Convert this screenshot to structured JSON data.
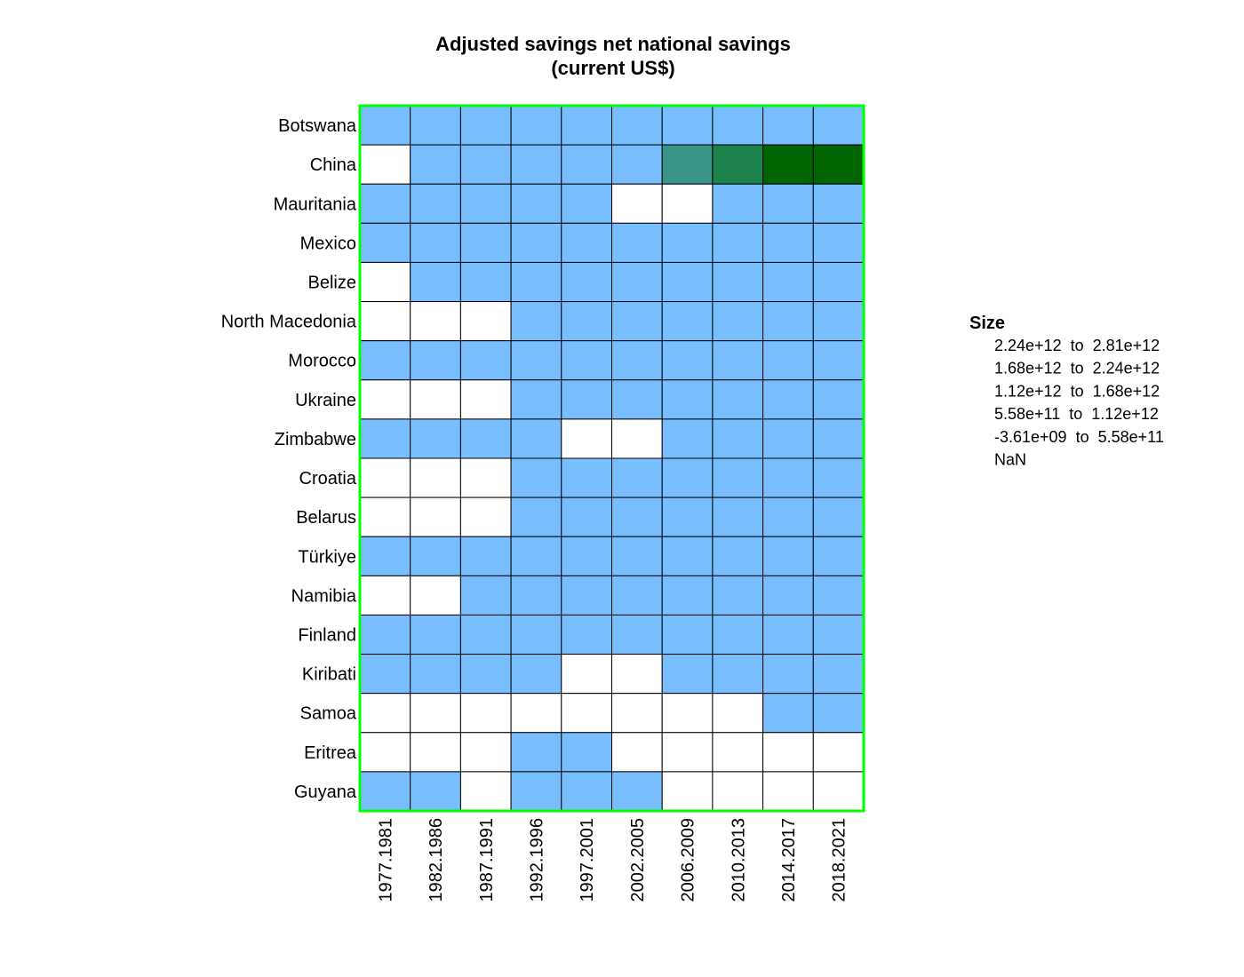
{
  "chart_data": {
    "type": "heatmap",
    "title_lines": [
      "Adjusted savings net national savings",
      "(current US$)"
    ],
    "columns": [
      "1977.1981",
      "1982.1986",
      "1987.1991",
      "1992.1996",
      "1997.2001",
      "2002.2005",
      "2006.2009",
      "2010.2013",
      "2014.2017",
      "2018.2021"
    ],
    "rows": [
      "Botswana",
      "China",
      "Mauritania",
      "Mexico",
      "Belize",
      "North Macedonia",
      "Morocco",
      "Ukraine",
      "Zimbabwe",
      "Croatia",
      "Belarus",
      "Türkiye",
      "Namibia",
      "Finland",
      "Kiribati",
      "Samoa",
      "Eritrea",
      "Guyana"
    ],
    "bins": [
      {
        "label_low": "2.24e+12",
        "label_high": "2.81e+12",
        "color": "#006400"
      },
      {
        "label_low": "1.68e+12",
        "label_high": "2.24e+12",
        "color": "#1e824c"
      },
      {
        "label_low": "1.12e+12",
        "label_high": "1.68e+12",
        "color": "#3a9488"
      },
      {
        "label_low": "5.58e+11",
        "label_high": "1.12e+12",
        "color": "#5aa8c8"
      },
      {
        "label_low": "-3.61e+09",
        "label_high": "5.58e+11",
        "color": "#78beff"
      }
    ],
    "nan_label": "NaN",
    "nan_color": "#ffffff",
    "legend_title": "Size",
    "legend_position": "right",
    "cells": [
      [
        4,
        4,
        4,
        4,
        4,
        4,
        4,
        4,
        4,
        4
      ],
      [
        -1,
        4,
        4,
        4,
        4,
        4,
        2,
        1,
        0,
        0
      ],
      [
        4,
        4,
        4,
        4,
        4,
        -1,
        -1,
        4,
        4,
        4
      ],
      [
        4,
        4,
        4,
        4,
        4,
        4,
        4,
        4,
        4,
        4
      ],
      [
        -1,
        4,
        4,
        4,
        4,
        4,
        4,
        4,
        4,
        4
      ],
      [
        -1,
        -1,
        -1,
        4,
        4,
        4,
        4,
        4,
        4,
        4
      ],
      [
        4,
        4,
        4,
        4,
        4,
        4,
        4,
        4,
        4,
        4
      ],
      [
        -1,
        -1,
        -1,
        4,
        4,
        4,
        4,
        4,
        4,
        4
      ],
      [
        4,
        4,
        4,
        4,
        -1,
        -1,
        4,
        4,
        4,
        4
      ],
      [
        -1,
        -1,
        -1,
        4,
        4,
        4,
        4,
        4,
        4,
        4
      ],
      [
        -1,
        -1,
        -1,
        4,
        4,
        4,
        4,
        4,
        4,
        4
      ],
      [
        4,
        4,
        4,
        4,
        4,
        4,
        4,
        4,
        4,
        4
      ],
      [
        -1,
        -1,
        4,
        4,
        4,
        4,
        4,
        4,
        4,
        4
      ],
      [
        4,
        4,
        4,
        4,
        4,
        4,
        4,
        4,
        4,
        4
      ],
      [
        4,
        4,
        4,
        4,
        -1,
        -1,
        4,
        4,
        4,
        4
      ],
      [
        -1,
        -1,
        -1,
        -1,
        -1,
        -1,
        -1,
        -1,
        4,
        4
      ],
      [
        -1,
        -1,
        -1,
        4,
        4,
        -1,
        -1,
        -1,
        -1,
        -1
      ],
      [
        4,
        4,
        -1,
        4,
        4,
        4,
        -1,
        -1,
        -1,
        -1
      ]
    ],
    "border_color": "#00ff00",
    "grid_color": "#000000"
  }
}
